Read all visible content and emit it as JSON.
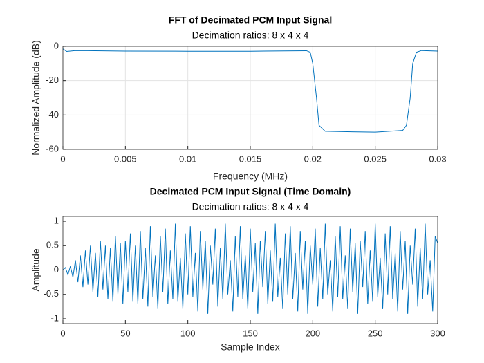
{
  "chart_data": [
    {
      "type": "line",
      "title": "FFT of Decimated PCM Input Signal",
      "subtitle": "Decimation ratios: 8 x 4 x 4",
      "xlabel": "Frequency (MHz)",
      "ylabel": "Normalized Amplitude (dB)",
      "x": [
        0,
        0.0003,
        0.001,
        0.005,
        0.01,
        0.015,
        0.0195,
        0.0198,
        0.02,
        0.0203,
        0.0205,
        0.021,
        0.025,
        0.0272,
        0.0275,
        0.0278,
        0.028,
        0.0283,
        0.0287,
        0.03
      ],
      "values": [
        -1.5,
        -3,
        -2.5,
        -2.8,
        -2.9,
        -2.9,
        -2.6,
        -3.5,
        -10,
        -30,
        -46,
        -49.5,
        -50,
        -49,
        -46,
        -30,
        -10,
        -3.5,
        -2.5,
        -2.8
      ],
      "color": "#0072bd",
      "xlim": [
        0,
        0.03
      ],
      "ylim": [
        -60,
        0
      ],
      "xticks": [
        0,
        0.005,
        0.01,
        0.015,
        0.02,
        0.025,
        0.03
      ],
      "yticks": [
        -60,
        -40,
        -20,
        0
      ],
      "grid": true
    },
    {
      "type": "line",
      "title": "Decimated PCM Input Signal (Time Domain)",
      "subtitle": "Decimation ratios: 8 x 4 x 4",
      "xlabel": "Sample Index",
      "ylabel": "Amplitude",
      "x": [
        0,
        2,
        4,
        6,
        8,
        10,
        12,
        14,
        16,
        18,
        20,
        22,
        24,
        26,
        28,
        30,
        32,
        34,
        36,
        38,
        40,
        42,
        44,
        46,
        48,
        50,
        52,
        54,
        56,
        58,
        60,
        62,
        64,
        66,
        68,
        70,
        72,
        74,
        76,
        78,
        80,
        82,
        84,
        86,
        88,
        90,
        92,
        94,
        96,
        98,
        100,
        102,
        104,
        106,
        108,
        110,
        112,
        114,
        116,
        118,
        120,
        122,
        124,
        126,
        128,
        130,
        132,
        134,
        136,
        138,
        140,
        142,
        144,
        146,
        148,
        150,
        152,
        154,
        156,
        158,
        160,
        162,
        164,
        166,
        168,
        170,
        172,
        174,
        176,
        178,
        180,
        182,
        184,
        186,
        188,
        190,
        192,
        194,
        196,
        198,
        200,
        202,
        204,
        206,
        208,
        210,
        212,
        214,
        216,
        218,
        220,
        222,
        224,
        226,
        228,
        230,
        232,
        234,
        236,
        238,
        240,
        242,
        244,
        246,
        248,
        250,
        252,
        254,
        256,
        258,
        260,
        262,
        264,
        266,
        268,
        270,
        272,
        274,
        276,
        278,
        280,
        282,
        284,
        286,
        288,
        290,
        292,
        294,
        296,
        298,
        300
      ],
      "values": [
        0,
        0.05,
        -0.1,
        0.08,
        -0.15,
        0.2,
        -0.25,
        0.3,
        -0.35,
        0.4,
        -0.3,
        0.5,
        -0.45,
        0.35,
        -0.55,
        0.6,
        -0.4,
        0.5,
        -0.6,
        0.45,
        -0.65,
        0.7,
        -0.5,
        0.55,
        -0.7,
        0.6,
        -0.45,
        0.75,
        -0.65,
        0.5,
        -0.7,
        0.8,
        -0.6,
        0.45,
        -0.75,
        0.9,
        -0.55,
        0.3,
        -0.8,
        0.7,
        -0.45,
        0.85,
        -0.7,
        0.4,
        -0.6,
        0.95,
        -0.65,
        0.25,
        -0.8,
        0.75,
        -0.5,
        0.9,
        -0.55,
        0.35,
        -0.85,
        0.8,
        -0.4,
        0.6,
        -0.9,
        0.5,
        -0.3,
        0.85,
        -0.75,
        0.45,
        -0.6,
        0.95,
        -0.5,
        0.2,
        -0.85,
        0.7,
        -0.55,
        0.9,
        -0.6,
        0.3,
        -0.8,
        0.85,
        -0.45,
        0.55,
        -0.9,
        0.6,
        -0.35,
        0.8,
        -0.7,
        0.4,
        -0.65,
        0.95,
        -0.55,
        0.25,
        -0.8,
        0.75,
        -0.5,
        0.9,
        -0.6,
        0.35,
        -0.85,
        0.8,
        -0.4,
        0.6,
        -0.9,
        0.5,
        -0.3,
        0.85,
        -0.75,
        0.45,
        -0.6,
        0.95,
        -0.5,
        0.2,
        -0.85,
        0.7,
        -0.55,
        0.9,
        -0.6,
        0.3,
        -0.8,
        0.85,
        -0.45,
        0.55,
        -0.9,
        0.6,
        -0.35,
        0.8,
        -0.7,
        0.4,
        -0.65,
        0.95,
        -0.55,
        0.25,
        -0.8,
        0.75,
        -0.5,
        0.9,
        -0.6,
        0.35,
        -0.85,
        0.8,
        -0.4,
        0.6,
        -0.9,
        0.5,
        -0.3,
        0.85,
        -0.75,
        0.45,
        -0.6,
        0.95,
        -0.5,
        0.2,
        -0.85,
        0.7,
        0.55
      ],
      "color": "#0072bd",
      "xlim": [
        0,
        300
      ],
      "ylim": [
        -1.1,
        1.1
      ],
      "xticks": [
        0,
        50,
        100,
        150,
        200,
        250,
        300
      ],
      "yticks": [
        -1,
        -0.5,
        0,
        0.5,
        1
      ],
      "grid": false
    }
  ]
}
